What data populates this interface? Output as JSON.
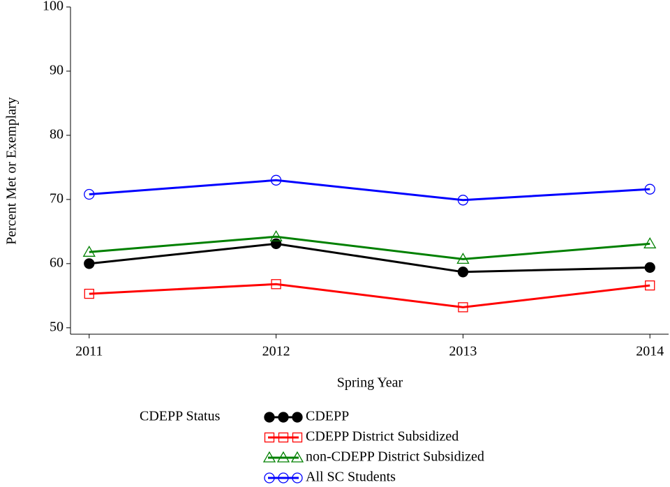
{
  "chart_data": {
    "type": "line",
    "x": [
      2011,
      2012,
      2013,
      2014
    ],
    "xlim": [
      2010.9,
      2014.1
    ],
    "xticks": [
      2011,
      2012,
      2013,
      2014
    ],
    "ylim": [
      49,
      100
    ],
    "yticks": [
      50,
      60,
      70,
      80,
      90,
      100
    ],
    "xlabel": "Spring Year",
    "ylabel": "Percent Met or Exemplary",
    "legend_title": "CDEPP Status",
    "series": [
      {
        "name": "CDEPP",
        "color": "#000000",
        "marker": "filled-circle",
        "values": [
          60.0,
          63.1,
          58.7,
          59.4
        ]
      },
      {
        "name": "CDEPP District Subsidized",
        "color": "#ff0000",
        "marker": "square",
        "values": [
          55.3,
          56.8,
          53.2,
          56.6
        ]
      },
      {
        "name": "non-CDEPP District Subsidized",
        "color": "#008000",
        "marker": "triangle",
        "values": [
          61.8,
          64.2,
          60.7,
          63.1
        ]
      },
      {
        "name": "All SC Students",
        "color": "#0000ff",
        "marker": "circle",
        "values": [
          70.8,
          73.0,
          69.9,
          71.6
        ]
      }
    ]
  }
}
